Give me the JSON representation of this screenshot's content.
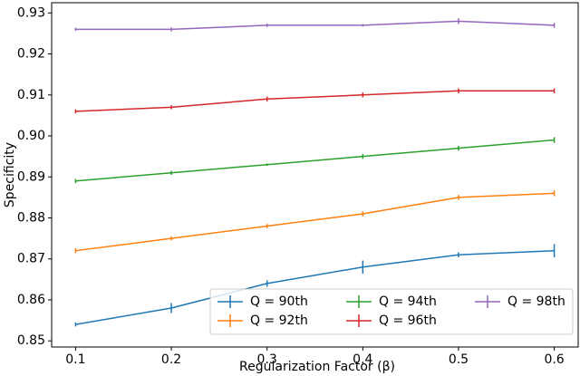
{
  "chart_data": {
    "type": "line",
    "x_label": "Regularization Factor (β)",
    "y_label": "Specificity",
    "x": [
      0.1,
      0.2,
      0.3,
      0.4,
      0.5,
      0.6
    ],
    "xlim": [
      0.075,
      0.625
    ],
    "xticks": [
      0.1,
      0.2,
      0.3,
      0.4,
      0.5,
      0.6
    ],
    "ylim": [
      0.8485,
      0.9325
    ],
    "yticks": [
      {
        "value": 0.85,
        "label": "0.85"
      },
      {
        "value": 0.86,
        "label": "0.86"
      },
      {
        "value": 0.87,
        "label": "0.87"
      },
      {
        "value": 0.88,
        "label": "0.88"
      },
      {
        "value": 0.89,
        "label": "0.89"
      },
      {
        "value": 0.9,
        "label": "0.90"
      },
      {
        "value": 0.91,
        "label": "0.91"
      },
      {
        "value": 0.92,
        "label": "0.92"
      },
      {
        "value": 0.93,
        "label": "0.93"
      }
    ],
    "grid": false,
    "legend": "lower right",
    "legend_columns": 3,
    "series": [
      {
        "name": "Q = 90th",
        "color": "#1f77b4",
        "values": [
          0.854,
          0.858,
          0.864,
          0.868,
          0.871,
          0.872
        ],
        "errors": [
          0.0005,
          0.0012,
          0.0008,
          0.0016,
          0.0006,
          0.0016
        ]
      },
      {
        "name": "Q = 92th",
        "color": "#ff7f0e",
        "values": [
          0.872,
          0.875,
          0.878,
          0.881,
          0.885,
          0.886
        ],
        "errors": [
          0.0006,
          0.0005,
          0.0005,
          0.0006,
          0.0006,
          0.0007
        ]
      },
      {
        "name": "Q = 94th",
        "color": "#2ca02c",
        "values": [
          0.889,
          0.891,
          0.893,
          0.895,
          0.897,
          0.899
        ],
        "errors": [
          0.0005,
          0.0005,
          0.0003,
          0.0006,
          0.0006,
          0.0007
        ]
      },
      {
        "name": "Q = 96th",
        "color": "#d62728",
        "values": [
          0.906,
          0.907,
          0.909,
          0.91,
          0.911,
          0.911
        ],
        "errors": [
          0.0005,
          0.0005,
          0.0006,
          0.0006,
          0.0006,
          0.0006
        ]
      },
      {
        "name": "Q = 98th",
        "color": "#9467bd",
        "values": [
          0.926,
          0.926,
          0.927,
          0.927,
          0.928,
          0.927
        ],
        "errors": [
          0.0004,
          0.0005,
          0.0004,
          0.0003,
          0.0007,
          0.0006
        ]
      }
    ]
  }
}
